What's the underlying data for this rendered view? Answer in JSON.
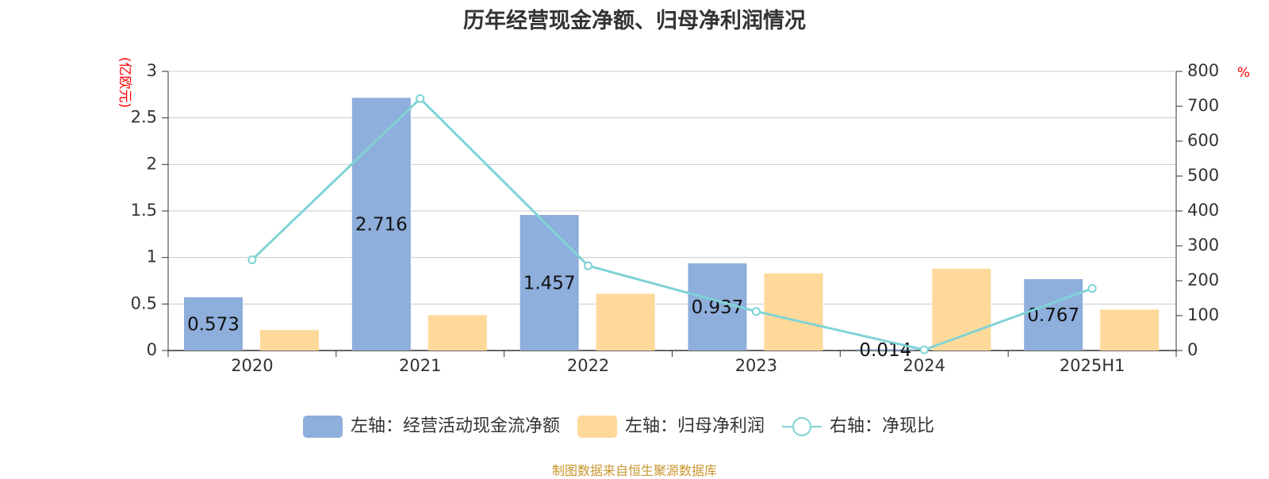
{
  "chart_data": {
    "type": "bar",
    "title": "历年经营现金净额、归母净利润情况",
    "categories": [
      "2020",
      "2021",
      "2022",
      "2023",
      "2024",
      "2025H1"
    ],
    "left_axis": {
      "unit": "(亿欧元)",
      "ylim": [
        0,
        3
      ],
      "ticks": [
        "0",
        "0.5",
        "1",
        "1.5",
        "2",
        "2.5",
        "3"
      ]
    },
    "right_axis": {
      "unit": "%",
      "ylim": [
        0,
        800
      ],
      "ticks": [
        "0",
        "100",
        "200",
        "300",
        "400",
        "500",
        "600",
        "700",
        "800"
      ]
    },
    "grid": true,
    "legend_position": "bottom",
    "series": [
      {
        "name": "左轴：经营活动现金流净额",
        "axis": "left",
        "kind": "bar",
        "color": "#8eaedb",
        "values": [
          0.573,
          2.716,
          1.457,
          0.937,
          0.014,
          0.767
        ],
        "labels": [
          "0.573",
          "2.716",
          "1.457",
          "0.937",
          "0.014",
          "0.767"
        ]
      },
      {
        "name": "左轴：归母净利润",
        "axis": "left",
        "kind": "bar",
        "color": "#ffd999",
        "values": [
          0.22,
          0.38,
          0.61,
          0.83,
          0.88,
          0.44
        ]
      },
      {
        "name": "右轴：净现比",
        "axis": "right",
        "kind": "line",
        "color": "#7fd3d6",
        "values": [
          260,
          722,
          243,
          112,
          2,
          178
        ]
      }
    ],
    "source": "制图数据来自恒生聚源数据库",
    "unit_color": "#ff0000",
    "source_color": "#c8952e"
  }
}
